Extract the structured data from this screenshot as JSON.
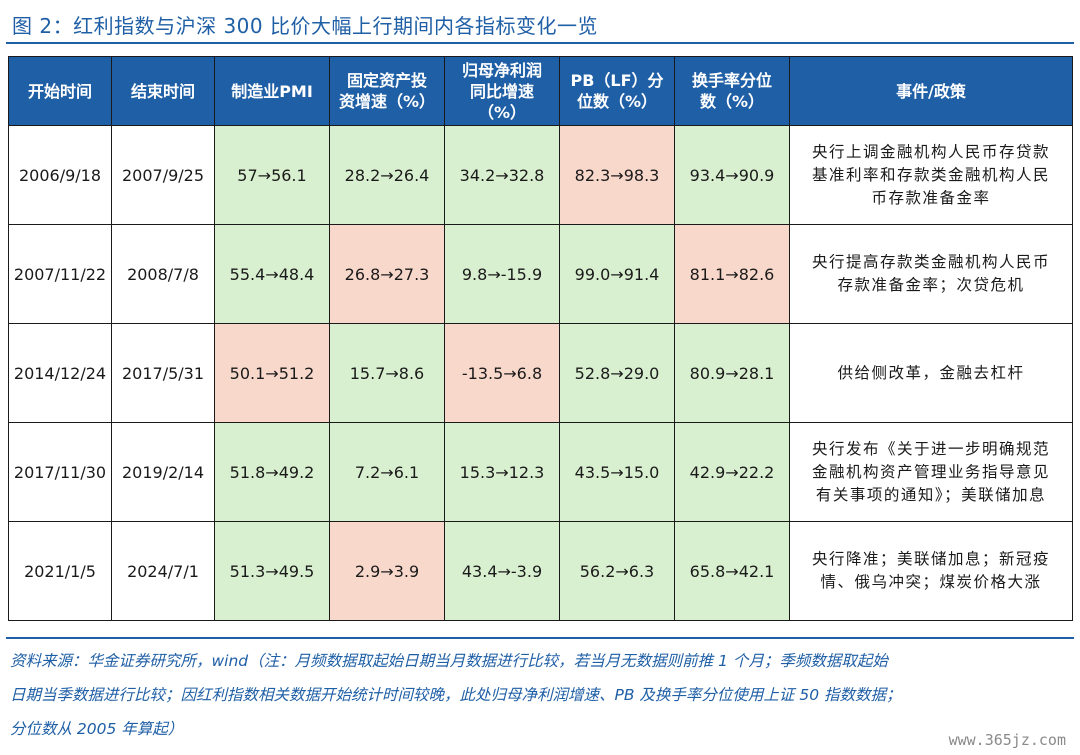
{
  "title": "图 2：红利指数与沪深 300 比价大幅上行期间内各指标变化一览",
  "headers": [
    {
      "line1": "开始时间",
      "line2": ""
    },
    {
      "line1": "结束时间",
      "line2": ""
    },
    {
      "line1": "制造业PMI",
      "line2": ""
    },
    {
      "line1": "固定资产投",
      "line2": "资增速（%）"
    },
    {
      "line1": "归母净利润",
      "line2": "同比增速"
    },
    {
      "line1": "PB（LF）分",
      "line2": "位数（%）"
    },
    {
      "line1": "换手率分位",
      "line2": "数（%）"
    },
    {
      "line1": "事件/政策",
      "line2": ""
    }
  ],
  "header_extra_line": "（%）",
  "rows": [
    {
      "start": "2006/9/18",
      "end": "2007/9/25",
      "cells": [
        {
          "text": "57→56.1",
          "color": "g"
        },
        {
          "text": "28.2→26.4",
          "color": "g"
        },
        {
          "text": "34.2→32.8",
          "color": "g"
        },
        {
          "text": "82.3→98.3",
          "color": "r"
        },
        {
          "text": "93.4→90.9",
          "color": "g"
        }
      ],
      "event": [
        "央行上调金融机构人民币存贷款",
        "基准利率和存款类金融机构人民",
        "币存款准备金率"
      ]
    },
    {
      "start": "2007/11/22",
      "end": "2008/7/8",
      "cells": [
        {
          "text": "55.4→48.4",
          "color": "g"
        },
        {
          "text": "26.8→27.3",
          "color": "r"
        },
        {
          "text": "9.8→-15.9",
          "color": "g"
        },
        {
          "text": "99.0→91.4",
          "color": "g"
        },
        {
          "text": "81.1→82.6",
          "color": "r"
        }
      ],
      "event": [
        "央行提高存款类金融机构人民币",
        "存款准备金率；次贷危机"
      ]
    },
    {
      "start": "2014/12/24",
      "end": "2017/5/31",
      "cells": [
        {
          "text": "50.1→51.2",
          "color": "r"
        },
        {
          "text": "15.7→8.6",
          "color": "g"
        },
        {
          "text": "-13.5→6.8",
          "color": "r"
        },
        {
          "text": "52.8→29.0",
          "color": "g"
        },
        {
          "text": "80.9→28.1",
          "color": "g"
        }
      ],
      "event": [
        "供给侧改革，金融去杠杆"
      ]
    },
    {
      "start": "2017/11/30",
      "end": "2019/2/14",
      "cells": [
        {
          "text": "51.8→49.2",
          "color": "g"
        },
        {
          "text": "7.2→6.1",
          "color": "g"
        },
        {
          "text": "15.3→12.3",
          "color": "g"
        },
        {
          "text": "43.5→15.0",
          "color": "g"
        },
        {
          "text": "42.9→22.2",
          "color": "g"
        }
      ],
      "event": [
        "央行发布《关于进一步明确规范",
        "金融机构资产管理业务指导意见",
        "有关事项的通知》；美联储加息"
      ]
    },
    {
      "start": "2021/1/5",
      "end": "2024/7/1",
      "cells": [
        {
          "text": "51.3→49.5",
          "color": "g"
        },
        {
          "text": "2.9→3.9",
          "color": "r"
        },
        {
          "text": "43.4→-3.9",
          "color": "g"
        },
        {
          "text": "56.2→6.3",
          "color": "g"
        },
        {
          "text": "65.8→42.1",
          "color": "g"
        }
      ],
      "event": [
        "央行降准；美联储加息；新冠疫",
        "情、俄乌冲突；煤炭价格大涨"
      ]
    }
  ],
  "source_lines": [
    "资料来源：华金证券研究所，wind（注：月频数据取起始日期当月数据进行比较，若当月无数据则前推 1 个月；季频数据取起始",
    "日期当季数据进行比较；因红利指数相关数据开始统计时间较晚，此处归母净利润增速、PB 及换手率分位使用上证 50 指数数据；",
    "分位数从 2005 年算起）"
  ],
  "watermark": "www.365jz.com",
  "colors": {
    "header_bg": "#1f5fa6",
    "decrease_bg": "#d9f0d0",
    "increase_bg": "#f9d8cc",
    "title": "#1f5fa6"
  }
}
